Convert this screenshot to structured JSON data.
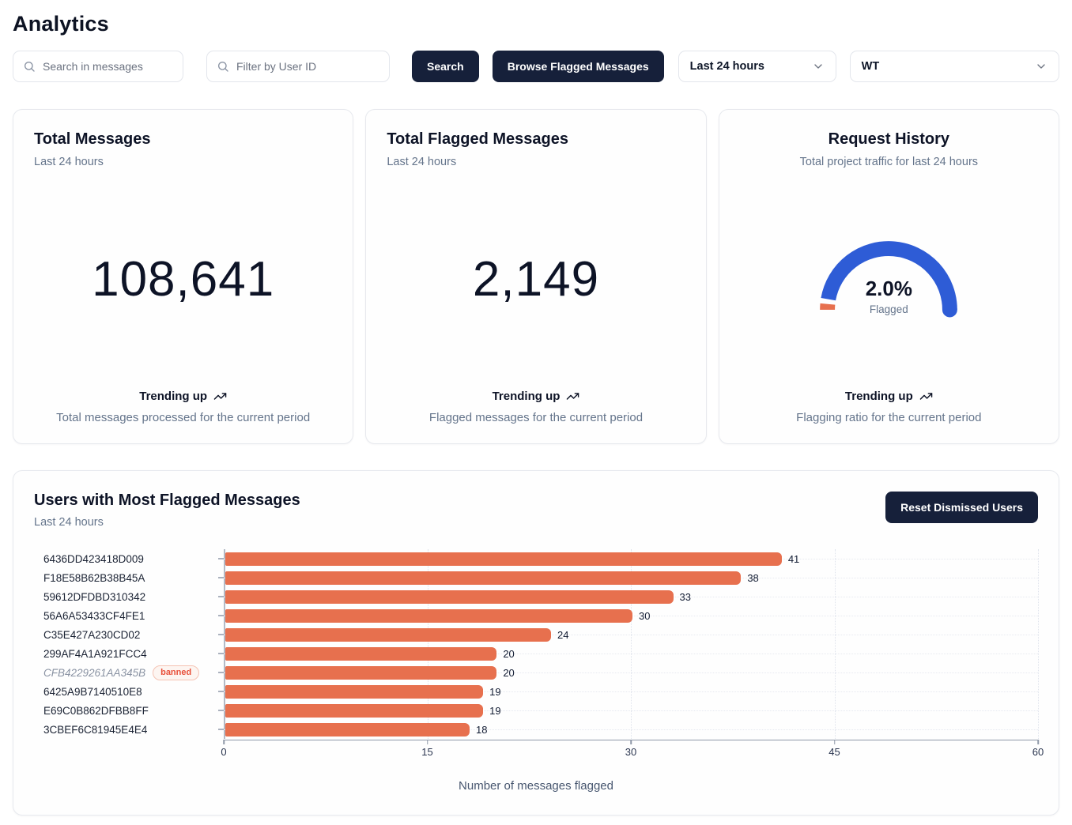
{
  "page": {
    "title": "Analytics"
  },
  "toolbar": {
    "search_messages_placeholder": "Search in messages",
    "filter_user_placeholder": "Filter by User ID",
    "search_button": "Search",
    "browse_flagged_button": "Browse Flagged Messages",
    "time_range_selected": "Last 24 hours",
    "project_selected": "WT"
  },
  "cards": {
    "total_messages": {
      "title": "Total Messages",
      "subtitle": "Last 24 hours",
      "value": "108,641",
      "trend": "Trending up",
      "footnote": "Total messages processed for the current period"
    },
    "total_flagged": {
      "title": "Total Flagged Messages",
      "subtitle": "Last 24 hours",
      "value": "2,149",
      "trend": "Trending up",
      "footnote": "Flagged messages for the current period"
    },
    "request_history": {
      "title": "Request History",
      "subtitle": "Total project traffic for last 24 hours",
      "gauge_value": "2.0%",
      "gauge_label": "Flagged",
      "trend": "Trending up",
      "footnote": "Flagging ratio for the current period"
    }
  },
  "flagged_users_panel": {
    "title": "Users with Most Flagged Messages",
    "subtitle": "Last 24 hours",
    "reset_button": "Reset Dismissed Users",
    "banned_badge": "banned"
  },
  "chart_data": [
    {
      "type": "gauge",
      "title": "Request History",
      "percent_flagged": 2.0,
      "value_label": "2.0%",
      "center_label": "Flagged",
      "arc_color": "#2e5cd6",
      "flagged_color": "#e7704e"
    },
    {
      "type": "bar",
      "orientation": "horizontal",
      "title": "Users with Most Flagged Messages",
      "categories": [
        "6436DD423418D009",
        "F18E58B62B38B45A",
        "59612DFDBD310342",
        "56A6A53433CF4FE1",
        "C35E427A230CD02",
        "299AF4A1A921FCC4",
        "CFB4229261AA345B",
        "6425A9B7140510E8",
        "E69C0B862DFBB8FF",
        "3CBEF6C81945E4E4"
      ],
      "values": [
        41,
        38,
        33,
        30,
        24,
        20,
        20,
        19,
        19,
        18
      ],
      "banned": [
        false,
        false,
        false,
        false,
        false,
        false,
        true,
        false,
        false,
        false
      ],
      "xlabel": "Number of messages flagged",
      "xlim": [
        0,
        60
      ],
      "xticks": [
        0,
        15,
        30,
        45,
        60
      ],
      "grid": "dotted",
      "bar_color": "#e7704e"
    }
  ],
  "colors": {
    "accent_dark": "#16203a",
    "bar_orange": "#e7704e",
    "gauge_blue": "#2e5cd6",
    "banned_red": "#e8503a",
    "muted_text": "#64748b"
  }
}
